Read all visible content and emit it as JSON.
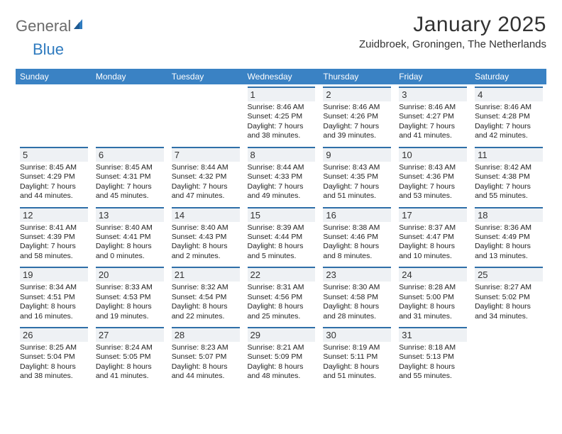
{
  "logo": {
    "part1": "General",
    "part2": "Blue"
  },
  "title": "January 2025",
  "location": "Zuidbroek, Groningen, The Netherlands",
  "colors": {
    "header_bg": "#3a82c4",
    "header_text": "#ffffff",
    "day_bg": "#eef1f4",
    "rule": "#2f6fa8",
    "logo_gray": "#6b6b6b",
    "logo_blue": "#2f7bbf",
    "body_text": "#222222"
  },
  "days_of_week": [
    "Sunday",
    "Monday",
    "Tuesday",
    "Wednesday",
    "Thursday",
    "Friday",
    "Saturday"
  ],
  "weeks": [
    [
      null,
      null,
      null,
      {
        "n": "1",
        "sr": "8:46 AM",
        "ss": "4:25 PM",
        "dl": "7 hours and 38 minutes."
      },
      {
        "n": "2",
        "sr": "8:46 AM",
        "ss": "4:26 PM",
        "dl": "7 hours and 39 minutes."
      },
      {
        "n": "3",
        "sr": "8:46 AM",
        "ss": "4:27 PM",
        "dl": "7 hours and 41 minutes."
      },
      {
        "n": "4",
        "sr": "8:46 AM",
        "ss": "4:28 PM",
        "dl": "7 hours and 42 minutes."
      }
    ],
    [
      {
        "n": "5",
        "sr": "8:45 AM",
        "ss": "4:29 PM",
        "dl": "7 hours and 44 minutes."
      },
      {
        "n": "6",
        "sr": "8:45 AM",
        "ss": "4:31 PM",
        "dl": "7 hours and 45 minutes."
      },
      {
        "n": "7",
        "sr": "8:44 AM",
        "ss": "4:32 PM",
        "dl": "7 hours and 47 minutes."
      },
      {
        "n": "8",
        "sr": "8:44 AM",
        "ss": "4:33 PM",
        "dl": "7 hours and 49 minutes."
      },
      {
        "n": "9",
        "sr": "8:43 AM",
        "ss": "4:35 PM",
        "dl": "7 hours and 51 minutes."
      },
      {
        "n": "10",
        "sr": "8:43 AM",
        "ss": "4:36 PM",
        "dl": "7 hours and 53 minutes."
      },
      {
        "n": "11",
        "sr": "8:42 AM",
        "ss": "4:38 PM",
        "dl": "7 hours and 55 minutes."
      }
    ],
    [
      {
        "n": "12",
        "sr": "8:41 AM",
        "ss": "4:39 PM",
        "dl": "7 hours and 58 minutes."
      },
      {
        "n": "13",
        "sr": "8:40 AM",
        "ss": "4:41 PM",
        "dl": "8 hours and 0 minutes."
      },
      {
        "n": "14",
        "sr": "8:40 AM",
        "ss": "4:43 PM",
        "dl": "8 hours and 2 minutes."
      },
      {
        "n": "15",
        "sr": "8:39 AM",
        "ss": "4:44 PM",
        "dl": "8 hours and 5 minutes."
      },
      {
        "n": "16",
        "sr": "8:38 AM",
        "ss": "4:46 PM",
        "dl": "8 hours and 8 minutes."
      },
      {
        "n": "17",
        "sr": "8:37 AM",
        "ss": "4:47 PM",
        "dl": "8 hours and 10 minutes."
      },
      {
        "n": "18",
        "sr": "8:36 AM",
        "ss": "4:49 PM",
        "dl": "8 hours and 13 minutes."
      }
    ],
    [
      {
        "n": "19",
        "sr": "8:34 AM",
        "ss": "4:51 PM",
        "dl": "8 hours and 16 minutes."
      },
      {
        "n": "20",
        "sr": "8:33 AM",
        "ss": "4:53 PM",
        "dl": "8 hours and 19 minutes."
      },
      {
        "n": "21",
        "sr": "8:32 AM",
        "ss": "4:54 PM",
        "dl": "8 hours and 22 minutes."
      },
      {
        "n": "22",
        "sr": "8:31 AM",
        "ss": "4:56 PM",
        "dl": "8 hours and 25 minutes."
      },
      {
        "n": "23",
        "sr": "8:30 AM",
        "ss": "4:58 PM",
        "dl": "8 hours and 28 minutes."
      },
      {
        "n": "24",
        "sr": "8:28 AM",
        "ss": "5:00 PM",
        "dl": "8 hours and 31 minutes."
      },
      {
        "n": "25",
        "sr": "8:27 AM",
        "ss": "5:02 PM",
        "dl": "8 hours and 34 minutes."
      }
    ],
    [
      {
        "n": "26",
        "sr": "8:25 AM",
        "ss": "5:04 PM",
        "dl": "8 hours and 38 minutes."
      },
      {
        "n": "27",
        "sr": "8:24 AM",
        "ss": "5:05 PM",
        "dl": "8 hours and 41 minutes."
      },
      {
        "n": "28",
        "sr": "8:23 AM",
        "ss": "5:07 PM",
        "dl": "8 hours and 44 minutes."
      },
      {
        "n": "29",
        "sr": "8:21 AM",
        "ss": "5:09 PM",
        "dl": "8 hours and 48 minutes."
      },
      {
        "n": "30",
        "sr": "8:19 AM",
        "ss": "5:11 PM",
        "dl": "8 hours and 51 minutes."
      },
      {
        "n": "31",
        "sr": "8:18 AM",
        "ss": "5:13 PM",
        "dl": "8 hours and 55 minutes."
      },
      null
    ]
  ],
  "labels": {
    "sunrise": "Sunrise:",
    "sunset": "Sunset:",
    "daylight": "Daylight:"
  }
}
